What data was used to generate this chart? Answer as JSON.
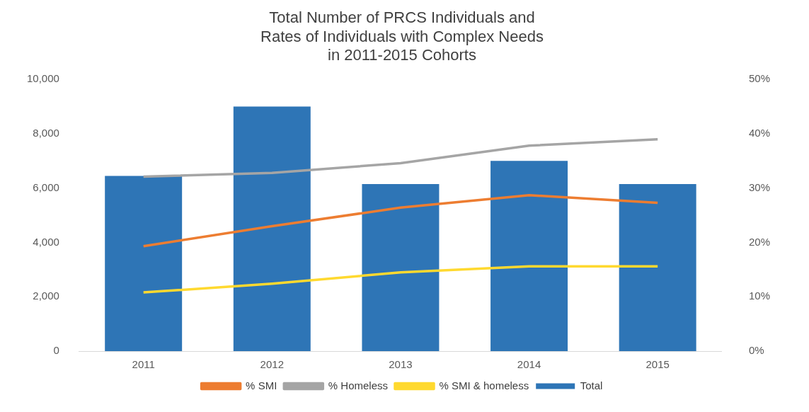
{
  "chart_data": {
    "type": "bar",
    "title": "Total Number of PRCS Individuals and Rates of Individuals with Complex Needs in 2011-2015 Cohorts",
    "categories": [
      "2011",
      "2012",
      "2013",
      "2014",
      "2015"
    ],
    "series": [
      {
        "name": "Total",
        "color": "#2e75b6",
        "values": [
          6450,
          9000,
          6150,
          7000,
          6150
        ]
      },
      {
        "name": "% SMI",
        "type": "line",
        "axis": "y2",
        "color": "#ed7d31",
        "values": [
          19.3,
          23,
          26.4,
          28.7,
          27.3
        ]
      },
      {
        "name": "% Homeless",
        "type": "line",
        "axis": "y2",
        "color": "#a5a5a5",
        "values": [
          32.1,
          32.8,
          34.6,
          37.8,
          39
        ]
      },
      {
        "name": "% SMI & homeless",
        "type": "line",
        "axis": "y2",
        "color": "#ffd92f",
        "values": [
          10.8,
          12.4,
          14.5,
          15.6,
          15.6
        ]
      }
    ],
    "ylim": [
      0,
      10000
    ],
    "yticks": [
      0,
      {
        "value": 2000,
        "label": "2,000"
      },
      {
        "value": 4000,
        "label": "4,000"
      },
      {
        "value": 6000,
        "label": "6,000"
      },
      {
        "value": 8000,
        "label": "8,000"
      },
      {
        "value": 10000,
        "label": "10,000"
      }
    ],
    "y2lim": [
      0,
      50
    ],
    "y2ticks": [
      {
        "value": 0,
        "label": "0%"
      },
      {
        "value": 10,
        "label": "10%"
      },
      {
        "value": 20,
        "label": "20%"
      },
      {
        "value": 30,
        "label": "30%"
      },
      {
        "value": 40,
        "label": "40%"
      },
      {
        "value": 50,
        "label": "50%"
      }
    ],
    "legend": "bottom",
    "marker": "none"
  }
}
